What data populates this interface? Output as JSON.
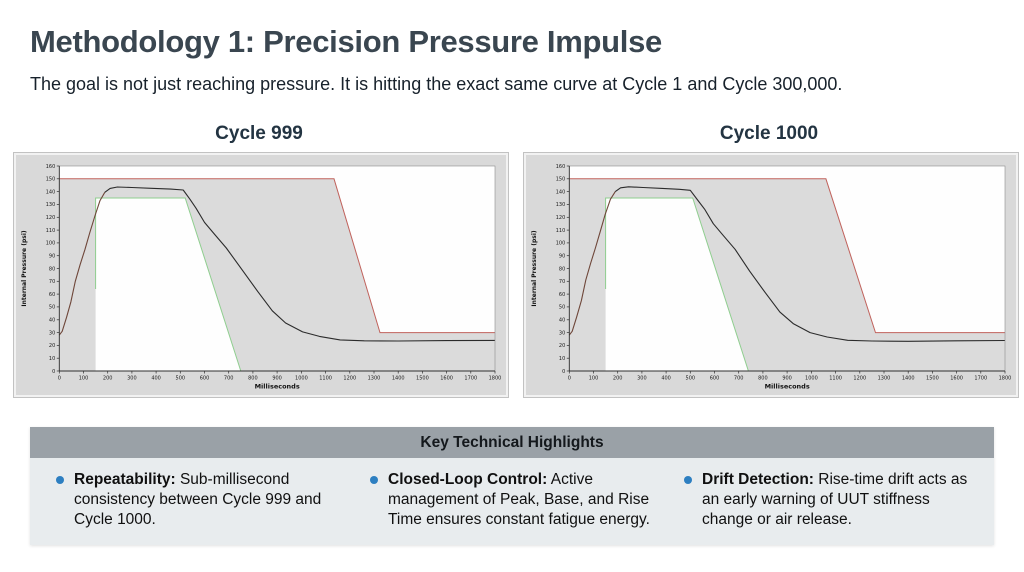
{
  "slide": {
    "title": "Methodology 1: Precision Pressure Impulse",
    "subtitle": "The goal is not just reaching pressure. It is hitting the exact same curve at Cycle 1 and Cycle 300,000.",
    "title_color": "#3a4650"
  },
  "chart_data": [
    {
      "type": "line",
      "title": "Cycle 999",
      "xlabel": "Milliseconds",
      "ylabel": "Internal Pressure (psi)",
      "xlim": [
        0,
        1800
      ],
      "ylim": [
        0,
        160
      ],
      "xtick_step": 100,
      "ytick_step": 10,
      "grid": false,
      "legend_position": "none",
      "plot_bg": "#fefefe",
      "frame_bg": "#d9d9d9",
      "band_fill": "#dbdbdb",
      "upper_limit": {
        "name": "upper-tolerance-limit",
        "color": "#c0625c",
        "points": [
          [
            0,
            150
          ],
          [
            1135,
            150
          ],
          [
            1325,
            30
          ],
          [
            1800,
            30
          ]
        ]
      },
      "lower_limit": {
        "name": "lower-tolerance-limit",
        "color": "#8fce8f",
        "boundary_points": [
          [
            0,
            0
          ],
          [
            150,
            0
          ],
          [
            150,
            135
          ],
          [
            520,
            135
          ],
          [
            750,
            0
          ],
          [
            1800,
            0
          ]
        ],
        "draw_segments": [
          [
            [
              0,
              0
            ],
            [
              150,
              0
            ]
          ],
          [
            [
              150,
              64
            ],
            [
              150,
              135
            ],
            [
              520,
              135
            ],
            [
              750,
              0
            ],
            [
              1800,
              0
            ]
          ]
        ]
      },
      "measured": {
        "name": "measured-internal-pressure",
        "color": "#2b2b2b",
        "rise_color": "#6e4639",
        "rise_end_index": 10,
        "points": [
          [
            0,
            28
          ],
          [
            12,
            31
          ],
          [
            30,
            42
          ],
          [
            48,
            54
          ],
          [
            66,
            70
          ],
          [
            86,
            83
          ],
          [
            106,
            95
          ],
          [
            126,
            108
          ],
          [
            147,
            121
          ],
          [
            168,
            133
          ],
          [
            188,
            139.5
          ],
          [
            210,
            142.5
          ],
          [
            240,
            143.6
          ],
          [
            300,
            143.2
          ],
          [
            380,
            142.6
          ],
          [
            460,
            142
          ],
          [
            512,
            141.3
          ],
          [
            540,
            134
          ],
          [
            565,
            127
          ],
          [
            600,
            116
          ],
          [
            640,
            107
          ],
          [
            690,
            96
          ],
          [
            755,
            79
          ],
          [
            820,
            62
          ],
          [
            880,
            47
          ],
          [
            935,
            37.5
          ],
          [
            1005,
            30.5
          ],
          [
            1075,
            27
          ],
          [
            1160,
            24.3
          ],
          [
            1260,
            23.6
          ],
          [
            1400,
            23.4
          ],
          [
            1600,
            23.7
          ],
          [
            1800,
            23.9
          ]
        ]
      }
    },
    {
      "type": "line",
      "title": "Cycle 1000",
      "xlabel": "Milliseconds",
      "ylabel": "Internal Pressure (psi)",
      "xlim": [
        0,
        1800
      ],
      "ylim": [
        0,
        160
      ],
      "xtick_step": 100,
      "ytick_step": 10,
      "grid": false,
      "legend_position": "none",
      "plot_bg": "#fefefe",
      "frame_bg": "#d9d9d9",
      "band_fill": "#dbdbdb",
      "upper_limit": {
        "name": "upper-tolerance-limit",
        "color": "#c0625c",
        "points": [
          [
            0,
            150
          ],
          [
            1060,
            150
          ],
          [
            1265,
            30
          ],
          [
            1800,
            30
          ]
        ]
      },
      "lower_limit": {
        "name": "lower-tolerance-limit",
        "color": "#8fce8f",
        "boundary_points": [
          [
            0,
            0
          ],
          [
            150,
            0
          ],
          [
            150,
            135
          ],
          [
            510,
            135
          ],
          [
            740,
            0
          ],
          [
            1800,
            0
          ]
        ],
        "draw_segments": [
          [
            [
              0,
              0
            ],
            [
              150,
              0
            ]
          ],
          [
            [
              150,
              64
            ],
            [
              150,
              135
            ],
            [
              510,
              135
            ],
            [
              740,
              0
            ],
            [
              1800,
              0
            ]
          ]
        ]
      },
      "measured": {
        "name": "measured-internal-pressure",
        "color": "#2b2b2b",
        "rise_color": "#6e4639",
        "rise_end_index": 10,
        "points": [
          [
            0,
            28
          ],
          [
            12,
            31
          ],
          [
            30,
            42
          ],
          [
            50,
            55
          ],
          [
            68,
            71
          ],
          [
            88,
            84
          ],
          [
            108,
            96
          ],
          [
            128,
            109
          ],
          [
            148,
            122
          ],
          [
            170,
            134
          ],
          [
            190,
            140
          ],
          [
            212,
            143
          ],
          [
            245,
            143.8
          ],
          [
            305,
            143.2
          ],
          [
            385,
            142.5
          ],
          [
            455,
            141.8
          ],
          [
            500,
            141
          ],
          [
            530,
            133.5
          ],
          [
            560,
            126
          ],
          [
            595,
            115
          ],
          [
            635,
            106
          ],
          [
            685,
            95
          ],
          [
            745,
            78
          ],
          [
            810,
            61
          ],
          [
            870,
            46
          ],
          [
            925,
            37
          ],
          [
            995,
            30
          ],
          [
            1065,
            26.5
          ],
          [
            1150,
            24
          ],
          [
            1250,
            23.4
          ],
          [
            1400,
            23.2
          ],
          [
            1600,
            23.6
          ],
          [
            1800,
            23.8
          ]
        ]
      }
    }
  ],
  "highlights": {
    "header": "Key Technical Highlights",
    "header_bg": "#9aa1a7",
    "body_bg": "#e8ecee",
    "bullet_color": "#2d7fc1",
    "items": [
      {
        "lead": "Repeatability:",
        "text": "Sub-millisecond consistency between Cycle 999 and Cycle 1000."
      },
      {
        "lead": "Closed-Loop Control:",
        "text": "Active management of Peak, Base, and Rise Time ensures constant fatigue energy."
      },
      {
        "lead": "Drift Detection:",
        "text": "Rise-time drift acts as an early warning of UUT stiffness change or air release."
      }
    ]
  }
}
